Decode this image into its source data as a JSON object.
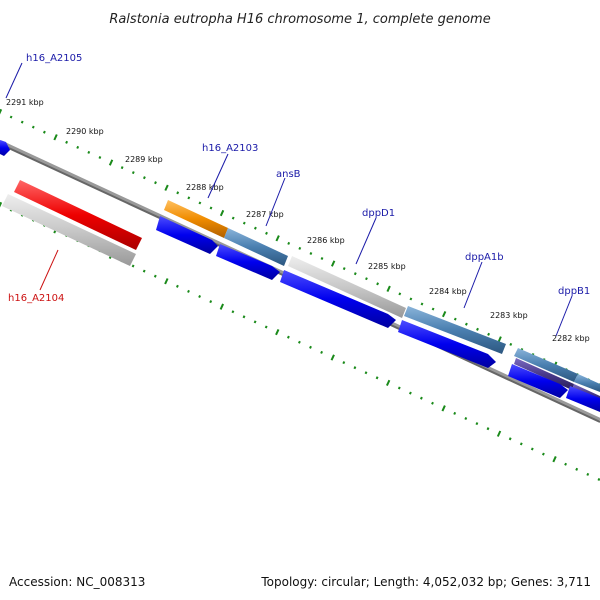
{
  "title": "Ralstonia eutropha H16 chromosome 1, complete genome",
  "footer": {
    "accession": "Accession: NC_008313",
    "summary": "Topology: circular; Length: 4,052,032 bp; Genes: 3,711"
  },
  "colors": {
    "backbone": "#777777",
    "tick": "#1a8a1a",
    "cds_forward": "#0000ee",
    "label_blue": "#1a1aa8",
    "label_red": "#cc1111",
    "gene_red": "#ee0000",
    "gene_gray": "#c8c8c8",
    "gene_orange": "#f08c00",
    "gene_steelblue": "#4a7fb0",
    "gene_purple": "#4a3a8c"
  },
  "kbp_labels": [
    "2291 kbp",
    "2290 kbp",
    "2289 kbp",
    "2288 kbp",
    "2287 kbp",
    "2286 kbp",
    "2285 kbp",
    "2284 kbp",
    "2283 kbp",
    "2282 kbp"
  ],
  "gene_labels": {
    "h16_A2105": "h16_A2105",
    "h16_A2103": "h16_A2103",
    "ansB": "ansB",
    "dppD1": "dppD1",
    "dppA1b": "dppA1b",
    "dppB1": "dppB1",
    "h16_A2104": "h16_A2104"
  }
}
